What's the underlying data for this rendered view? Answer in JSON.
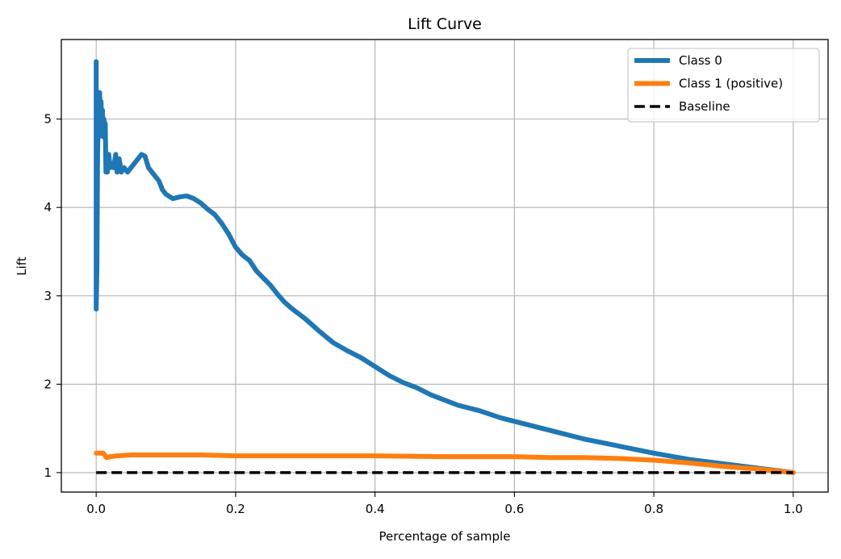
{
  "chart_data": {
    "type": "line",
    "title": "Lift Curve",
    "xlabel": "Percentage of sample",
    "ylabel": "Lift",
    "xlim": [
      -0.05,
      1.05
    ],
    "ylim": [
      0.78,
      5.9
    ],
    "xticks": [
      0.0,
      0.2,
      0.4,
      0.6,
      0.8,
      1.0
    ],
    "xtick_labels": [
      "0.0",
      "0.2",
      "0.4",
      "0.6",
      "0.8",
      "1.0"
    ],
    "yticks": [
      1,
      2,
      3,
      4,
      5
    ],
    "ytick_labels": [
      "1",
      "2",
      "3",
      "4",
      "5"
    ],
    "grid": true,
    "legend_position": "top-right",
    "series": [
      {
        "name": "Class 0",
        "color": "#1f77b4",
        "style": "solid",
        "x": [
          0.0,
          0.0,
          0.001,
          0.002,
          0.003,
          0.004,
          0.005,
          0.006,
          0.007,
          0.008,
          0.009,
          0.01,
          0.011,
          0.012,
          0.013,
          0.014,
          0.015,
          0.016,
          0.018,
          0.02,
          0.022,
          0.025,
          0.028,
          0.03,
          0.033,
          0.036,
          0.04,
          0.045,
          0.05,
          0.055,
          0.06,
          0.065,
          0.07,
          0.075,
          0.08,
          0.09,
          0.095,
          0.1,
          0.11,
          0.12,
          0.13,
          0.14,
          0.15,
          0.16,
          0.17,
          0.18,
          0.19,
          0.2,
          0.21,
          0.22,
          0.23,
          0.24,
          0.25,
          0.26,
          0.27,
          0.28,
          0.3,
          0.32,
          0.34,
          0.36,
          0.38,
          0.4,
          0.42,
          0.44,
          0.46,
          0.48,
          0.5,
          0.52,
          0.55,
          0.58,
          0.6,
          0.65,
          0.7,
          0.75,
          0.8,
          0.85,
          0.9,
          0.95,
          1.0
        ],
        "y": [
          5.65,
          2.85,
          3.3,
          4.6,
          5.0,
          4.8,
          5.3,
          4.9,
          5.2,
          4.85,
          5.1,
          4.8,
          5.0,
          4.85,
          4.95,
          4.4,
          4.55,
          4.4,
          4.6,
          4.45,
          4.5,
          4.45,
          4.6,
          4.4,
          4.55,
          4.4,
          4.45,
          4.4,
          4.45,
          4.5,
          4.55,
          4.6,
          4.58,
          4.45,
          4.4,
          4.3,
          4.2,
          4.15,
          4.1,
          4.12,
          4.13,
          4.1,
          4.05,
          3.98,
          3.92,
          3.82,
          3.7,
          3.55,
          3.46,
          3.4,
          3.28,
          3.2,
          3.12,
          3.02,
          2.93,
          2.86,
          2.74,
          2.6,
          2.47,
          2.38,
          2.3,
          2.2,
          2.1,
          2.02,
          1.96,
          1.88,
          1.82,
          1.76,
          1.7,
          1.62,
          1.58,
          1.48,
          1.38,
          1.3,
          1.22,
          1.15,
          1.1,
          1.05,
          1.0
        ]
      },
      {
        "name": "Class 1 (positive)",
        "color": "#ff7f0e",
        "style": "solid",
        "x": [
          0.0,
          0.005,
          0.01,
          0.012,
          0.015,
          0.02,
          0.03,
          0.05,
          0.1,
          0.15,
          0.2,
          0.3,
          0.4,
          0.5,
          0.6,
          0.65,
          0.7,
          0.75,
          0.8,
          0.85,
          0.9,
          0.95,
          1.0
        ],
        "y": [
          1.22,
          1.22,
          1.22,
          1.2,
          1.17,
          1.18,
          1.19,
          1.2,
          1.2,
          1.2,
          1.19,
          1.19,
          1.19,
          1.18,
          1.18,
          1.17,
          1.17,
          1.16,
          1.14,
          1.11,
          1.07,
          1.04,
          1.0
        ]
      },
      {
        "name": "Baseline",
        "color": "#000000",
        "style": "dashed",
        "x": [
          0.0,
          1.0
        ],
        "y": [
          1.0,
          1.0
        ]
      }
    ]
  }
}
